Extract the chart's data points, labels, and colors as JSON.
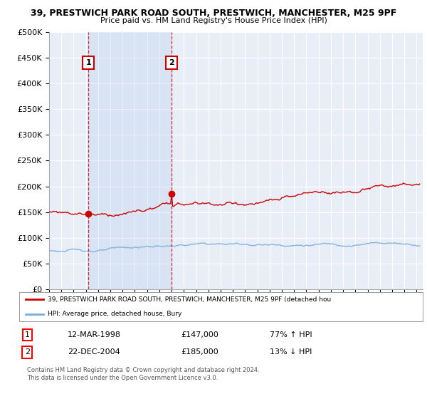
{
  "title_line1": "39, PRESTWICH PARK ROAD SOUTH, PRESTWICH, MANCHESTER, M25 9PF",
  "title_line2": "Price paid vs. HM Land Registry's House Price Index (HPI)",
  "ylim": [
    0,
    500000
  ],
  "yticks": [
    0,
    50000,
    100000,
    150000,
    200000,
    250000,
    300000,
    350000,
    400000,
    450000,
    500000
  ],
  "background_color": "#ffffff",
  "plot_bg_color": "#e8eef8",
  "grid_color": "#ffffff",
  "legend_label_red": "39, PRESTWICH PARK ROAD SOUTH, PRESTWICH, MANCHESTER, M25 9PF (detached hou",
  "legend_label_blue": "HPI: Average price, detached house, Bury",
  "sale1_date": "12-MAR-1998",
  "sale1_price": "£147,000",
  "sale1_hpi": "77% ↑ HPI",
  "sale2_date": "22-DEC-2004",
  "sale2_price": "£185,000",
  "sale2_hpi": "13% ↓ HPI",
  "copyright_text": "Contains HM Land Registry data © Crown copyright and database right 2024.\nThis data is licensed under the Open Government Licence v3.0.",
  "red_color": "#cc0000",
  "blue_color": "#7aacdc",
  "sale1_x": 1998.21,
  "sale1_y": 147000,
  "sale2_x": 2004.98,
  "sale2_y": 185000,
  "xlim_left": 1995,
  "xlim_right": 2025.5
}
